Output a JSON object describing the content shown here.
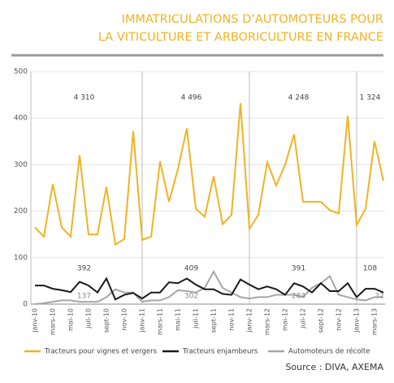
{
  "chart_data": {
    "type": "line",
    "title": [
      "IMMATRICULATIONS D’AUTOMOTEURS POUR",
      "LA VITICULTURE ET ARBORICULTURE EN FRANCE"
    ],
    "categories": [
      "janv-10",
      null,
      "mars-10",
      null,
      "mai-10",
      null,
      "juil-10",
      null,
      "sept-10",
      null,
      "nov-10",
      null,
      "janv-11",
      null,
      "mars-11",
      null,
      "mai-11",
      null,
      "juil-11",
      null,
      "sept-11",
      null,
      "nov-11",
      null,
      "janv-12",
      null,
      "mars-12",
      null,
      "mai-12",
      null,
      "juil-12",
      null,
      "sept-12",
      null,
      "nov-12",
      null,
      "janv-13",
      null,
      "mars-13",
      null
    ],
    "series": [
      {
        "name": "Tracteurs pour vignes et vergers",
        "color": "#f0b323",
        "values": [
          165,
          145,
          258,
          165,
          145,
          320,
          150,
          150,
          252,
          128,
          140,
          372,
          138,
          145,
          307,
          220,
          290,
          378,
          205,
          188,
          275,
          172,
          192,
          432,
          162,
          192,
          305,
          255,
          300,
          365,
          220,
          220,
          220,
          202,
          195,
          405,
          170,
          205,
          350,
          265
        ]
      },
      {
        "name": "Tracteurs enjambeurs",
        "color": "#1a1a1a",
        "values": [
          40,
          40,
          33,
          30,
          26,
          48,
          40,
          25,
          55,
          10,
          20,
          24,
          12,
          25,
          25,
          47,
          45,
          55,
          42,
          32,
          32,
          22,
          20,
          53,
          42,
          32,
          38,
          32,
          20,
          45,
          38,
          25,
          45,
          28,
          28,
          45,
          15,
          33,
          33,
          25
        ]
      },
      {
        "name": "Automoteurs de récolte",
        "color": "#a6a6a6",
        "values": [
          0,
          2,
          5,
          8,
          8,
          5,
          5,
          5,
          15,
          32,
          25,
          25,
          5,
          8,
          8,
          15,
          30,
          28,
          25,
          35,
          70,
          35,
          25,
          15,
          12,
          15,
          15,
          20,
          20,
          20,
          15,
          35,
          45,
          60,
          20,
          15,
          10,
          8,
          15,
          15
        ]
      }
    ],
    "year_totals": [
      [
        "4 310",
        "4 496",
        "4 248",
        "1 324"
      ],
      [
        "392",
        "409",
        "391",
        "108"
      ],
      [
        "137",
        "302",
        "284",
        "32"
      ]
    ],
    "ylim": [
      0,
      500
    ],
    "yticks": [
      0,
      100,
      200,
      300,
      400,
      500
    ],
    "grid": true,
    "source": "Source : DIVA, AXEMA"
  }
}
